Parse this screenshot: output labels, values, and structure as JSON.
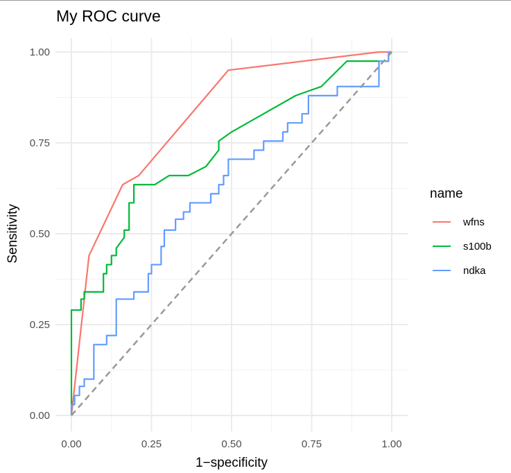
{
  "chart_data": {
    "type": "line",
    "title": "My ROC curve",
    "xlabel": "1−specificity",
    "ylabel": "Sensitivity",
    "xlim": [
      0,
      1
    ],
    "ylim": [
      0,
      1
    ],
    "x_ticks": [
      "0.00",
      "0.25",
      "0.50",
      "0.75",
      "1.00"
    ],
    "y_ticks": [
      "0.00",
      "0.25",
      "0.50",
      "0.75",
      "1.00"
    ],
    "grid": true,
    "legend": {
      "title": "name",
      "position": "right"
    },
    "reference_line": {
      "x": [
        0,
        1
      ],
      "y": [
        0,
        1
      ],
      "color": "#999999",
      "style": "dashed"
    },
    "series": [
      {
        "name": "wfns",
        "color": "#F8766D",
        "x": [
          0,
          0.055,
          0.16,
          0.21,
          0.49,
          0.96,
          1.0
        ],
        "y": [
          0,
          0.44,
          0.635,
          0.66,
          0.95,
          1.0,
          1.0
        ]
      },
      {
        "name": "s100b",
        "color": "#00BA38",
        "x": [
          0,
          0,
          0.03,
          0.03,
          0.04,
          0.04,
          0.1,
          0.1,
          0.11,
          0.11,
          0.125,
          0.125,
          0.14,
          0.14,
          0.165,
          0.165,
          0.18,
          0.18,
          0.195,
          0.195,
          0.26,
          0.305,
          0.365,
          0.42,
          0.46,
          0.46,
          0.5,
          0.6,
          0.7,
          0.78,
          0.86,
          0.96,
          0.99,
          0.99,
          1.0
        ],
        "y": [
          0,
          0.29,
          0.29,
          0.32,
          0.32,
          0.34,
          0.34,
          0.39,
          0.39,
          0.415,
          0.415,
          0.44,
          0.44,
          0.46,
          0.49,
          0.51,
          0.51,
          0.585,
          0.585,
          0.635,
          0.635,
          0.66,
          0.66,
          0.685,
          0.73,
          0.755,
          0.78,
          0.83,
          0.88,
          0.905,
          0.975,
          0.975,
          0.975,
          0.99,
          1.0
        ]
      },
      {
        "name": "ndka",
        "color": "#619CFF",
        "x": [
          0,
          0,
          0.01,
          0.01,
          0.025,
          0.025,
          0.04,
          0.04,
          0.07,
          0.07,
          0.11,
          0.11,
          0.14,
          0.14,
          0.195,
          0.195,
          0.24,
          0.24,
          0.25,
          0.25,
          0.28,
          0.28,
          0.29,
          0.29,
          0.325,
          0.325,
          0.35,
          0.35,
          0.37,
          0.37,
          0.435,
          0.435,
          0.46,
          0.46,
          0.475,
          0.475,
          0.49,
          0.49,
          0.57,
          0.57,
          0.6,
          0.6,
          0.66,
          0.66,
          0.675,
          0.675,
          0.72,
          0.72,
          0.74,
          0.74,
          0.83,
          0.83,
          0.96,
          0.96,
          0.99,
          0.99,
          1.0
        ],
        "y": [
          0,
          0.03,
          0.03,
          0.055,
          0.055,
          0.08,
          0.08,
          0.1,
          0.1,
          0.195,
          0.195,
          0.22,
          0.22,
          0.32,
          0.32,
          0.34,
          0.34,
          0.39,
          0.39,
          0.415,
          0.415,
          0.465,
          0.465,
          0.51,
          0.51,
          0.54,
          0.54,
          0.56,
          0.56,
          0.585,
          0.585,
          0.61,
          0.61,
          0.635,
          0.635,
          0.66,
          0.66,
          0.705,
          0.705,
          0.73,
          0.73,
          0.755,
          0.755,
          0.78,
          0.78,
          0.805,
          0.805,
          0.83,
          0.83,
          0.88,
          0.88,
          0.905,
          0.905,
          0.975,
          0.975,
          1.0,
          1.0
        ]
      }
    ]
  }
}
